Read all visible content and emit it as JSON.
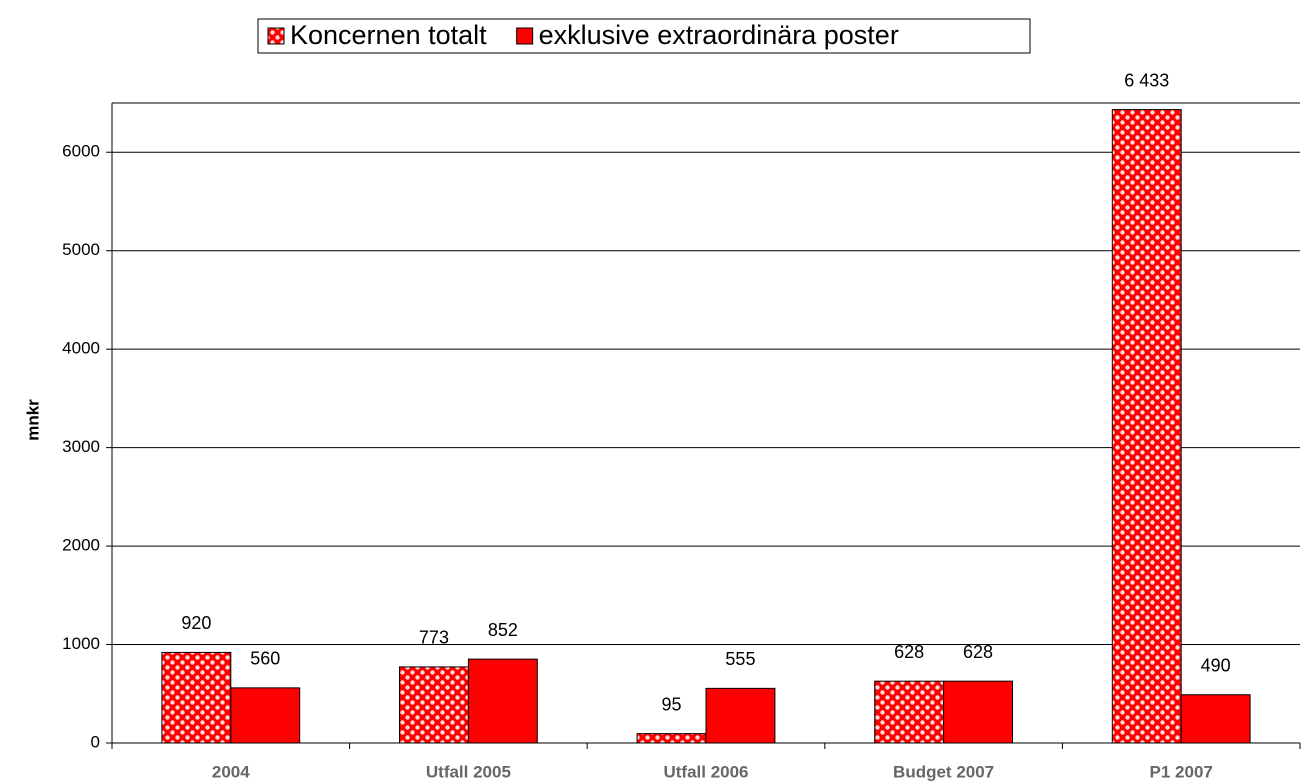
{
  "chart_data": {
    "type": "bar",
    "categories": [
      "2004",
      "Utfall 2005",
      "Utfall 2006",
      "Budget 2007",
      "P1 2007"
    ],
    "series": [
      {
        "name": "Koncernen totalt",
        "color": "#ff0000",
        "fill_pattern": "dots",
        "values": [
          920,
          773,
          95,
          628,
          6433
        ],
        "value_labels": [
          "920",
          "773",
          "95",
          "628",
          "6 433"
        ]
      },
      {
        "name": "exklusive extraordinära poster",
        "color": "#ff0000",
        "values": [
          560,
          852,
          555,
          628,
          490
        ],
        "value_labels": [
          "560",
          "852",
          "555",
          "628",
          "490"
        ]
      }
    ],
    "ylabel": "mnkr",
    "ylim": [
      0,
      6500
    ],
    "yticks": [
      0,
      1000,
      2000,
      3000,
      4000,
      5000,
      6000
    ],
    "grid": true,
    "legend": "top"
  }
}
